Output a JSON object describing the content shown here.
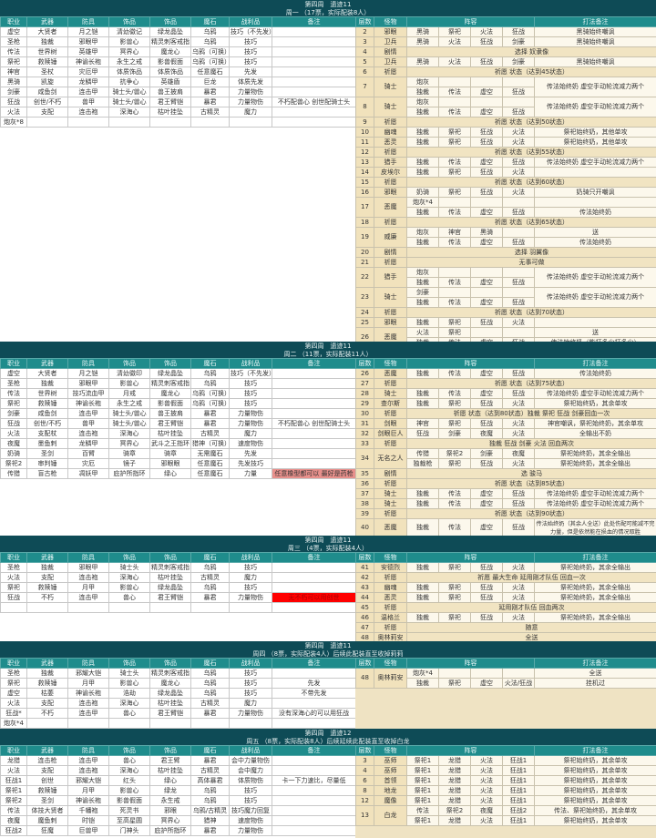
{
  "left_headers": [
    "职业",
    "武器",
    "防具",
    "饰品",
    "饰品",
    "魔石",
    "战利品",
    "备注"
  ],
  "right_headers": {
    "floor": "层数",
    "monster": "怪物",
    "lineup": "阵容",
    "note": "打法备注"
  },
  "colors": {
    "header": "#0e4b56",
    "column_header": "#1f8c8c",
    "beige": "#f1e2bc",
    "pink_note": "#e8908c",
    "red_note": "#ff0000"
  },
  "sections": [
    {
      "title": "第四周　遗迹11",
      "subtitle": "周一 （17票，实际配装8人）",
      "left_rows": [
        [
          "虚空",
          "大贤者",
          "月之铠",
          "清幼徽记",
          "绿龙晶坠",
          "乌鸦",
          "技巧（不先发）",
          ""
        ],
        [
          "圣枪",
          "独裁",
          "邪眼甲",
          "影兽心",
          "精灵刺客戒指",
          "乌鸦",
          "技巧",
          ""
        ],
        [
          "传法",
          "世界树",
          "英雄甲",
          "冥界心",
          "魔龙心",
          "乌鸦（可换）",
          "技巧",
          ""
        ],
        [
          "祭祀",
          "救赎锤",
          "神谕长袍",
          "永生之戒",
          "影兽假面",
          "乌鸦（可换）",
          "技巧",
          ""
        ],
        [
          "神官",
          "圣杖",
          "灾厄甲",
          "体质饰品",
          "体质饰品",
          "任意魔石",
          "先发",
          ""
        ],
        [
          "黑骑",
          "凯旋",
          "龙鳞甲",
          "抗争心",
          "英雄盾",
          "巨龙",
          "体质先发",
          ""
        ],
        [
          "剑豪",
          "咸鱼剑",
          "连击甲",
          "骑士头/兽心",
          "兽王披肩",
          "暴君",
          "力量物伤",
          ""
        ],
        [
          "狂战",
          "创世/不朽",
          "兽甲",
          "骑士头/兽心",
          "君王臂铠",
          "暴君",
          "力量物伤",
          "不朽配兽心 创世配骑士头"
        ],
        [
          "火法",
          "支配",
          "连击袍",
          "深海心",
          "枯叶挂坠",
          "古精灵",
          "魔力",
          ""
        ],
        [
          "炮灰*8",
          "",
          "",
          "",
          "",
          "",
          "",
          ""
        ]
      ],
      "right_rows": [
        {
          "floor": "2",
          "monster": "邪眼",
          "lineup": [
            "黑骑",
            "祭祀",
            "火法",
            "狂战"
          ],
          "note": "黑骑始终嘲讽"
        },
        {
          "floor": "3",
          "monster": "卫兵",
          "lineup": [
            "黑骑",
            "火法",
            "狂战",
            "剑豪"
          ],
          "note": "黑骑始终嘲讽"
        },
        {
          "floor": "4",
          "monster": "剧情",
          "text": "选择 奴隶像"
        },
        {
          "floor": "5",
          "monster": "卫兵",
          "lineup": [
            "黑骑",
            "火法",
            "狂战",
            "剑豪"
          ],
          "note": "黑骑始终嘲讽"
        },
        {
          "floor": "6",
          "monster": "祈愿",
          "text": "祈愿 状态（达到45状态）"
        },
        {
          "floor": "7",
          "monster": "骑士",
          "lineups": [
            [
              "炮灰",
              "",
              "",
              ""
            ],
            [
              "独裁",
              "传法",
              "虚空",
              "狂战"
            ]
          ],
          "notes": [
            "传法始终奶 虚空手动轮流减力两个"
          ]
        },
        {
          "floor": "8",
          "monster": "骑士",
          "lineups": [
            [
              "炮灰",
              "",
              "",
              ""
            ],
            [
              "独裁",
              "传法",
              "虚空",
              "狂战"
            ]
          ],
          "notes": [
            "传法始终奶 虚空手动轮流减力两个"
          ]
        },
        {
          "floor": "9",
          "monster": "祈愿",
          "text": "祈愿 状态（达到50状态）"
        },
        {
          "floor": "10",
          "monster": "幽魂",
          "lineup": [
            "独裁",
            "祭祀",
            "狂战",
            "火法"
          ],
          "note": "祭祀始终奶，其他单攻"
        },
        {
          "floor": "11",
          "monster": "恶灵",
          "lineup": [
            "独裁",
            "祭祀",
            "狂战",
            "火法"
          ],
          "note": "祭祀始终奶，其他单攻"
        },
        {
          "floor": "12",
          "monster": "祈愿",
          "text": "祈愿 状态（达到55状态）"
        },
        {
          "floor": "13",
          "monster": "猎手",
          "lineup": [
            "独裁",
            "传法",
            "虚空",
            "狂战"
          ],
          "note": "传法始终奶 虚空手动轮流减力两个"
        },
        {
          "floor": "14",
          "monster": "皮埃尔",
          "lineup": [
            "独裁",
            "祭祀",
            "狂战",
            "火法"
          ],
          "note": ""
        },
        {
          "floor": "15",
          "monster": "祈愿",
          "text": "祈愿 状态（达到60状态）"
        },
        {
          "floor": "16",
          "monster": "邪眼",
          "lineup": [
            "奶骑",
            "祭祀",
            "狂战",
            "火法"
          ],
          "note": "奶骑只开嘲讽"
        },
        {
          "floor": "17",
          "monster": "恶魔",
          "lineups": [
            [
              "炮灰*4",
              "",
              "",
              ""
            ],
            [
              "独裁",
              "传法",
              "虚空",
              "狂战"
            ]
          ],
          "notes": [
            "",
            "传法始终奶"
          ]
        },
        {
          "floor": "18",
          "monster": "祈愿",
          "text": "祈愿 状态（达到65状态）"
        },
        {
          "floor": "19",
          "monster": "威廉",
          "lineups": [
            [
              "炮灰",
              "神官",
              "黑骑",
              ""
            ],
            [
              "独裁",
              "传法",
              "虚空",
              "狂战"
            ]
          ],
          "notes": [
            "送",
            "传法始终奶"
          ]
        },
        {
          "floor": "20",
          "monster": "剧情",
          "text": "选择 羽翼像"
        },
        {
          "floor": "21",
          "monster": "祈愿",
          "text": "无事可做"
        },
        {
          "floor": "22",
          "monster": "猎手",
          "lineups": [
            [
              "炮灰",
              "",
              "",
              ""
            ],
            [
              "独裁",
              "传法",
              "虚空",
              "狂战"
            ]
          ],
          "notes": [
            "传法始终奶 虚空手动轮流减力两个"
          ]
        },
        {
          "floor": "23",
          "monster": "骑士",
          "lineups": [
            [
              "剑豪",
              "",
              "",
              ""
            ],
            [
              "独裁",
              "传法",
              "虚空",
              "狂战"
            ]
          ],
          "notes": [
            "传法始终奶 虚空手动轮流减力两个"
          ]
        },
        {
          "floor": "24",
          "monster": "祈愿",
          "text": "祈愿 状态（达到70状态）"
        },
        {
          "floor": "25",
          "monster": "邪眼",
          "lineup": [
            "独裁",
            "祭祀",
            "狂战",
            "火法"
          ],
          "note": ""
        },
        {
          "floor": "26",
          "monster": "恶魔",
          "lineups": [
            [
              "火法",
              "祭祀",
              "",
              ""
            ],
            [
              "独裁",
              "传法",
              "虚空",
              "狂战"
            ]
          ],
          "notes": [
            "送",
            "传法始终奶（能打多少打多少）"
          ]
        }
      ]
    },
    {
      "title": "第四周　遗迹11",
      "subtitle": "周二 （11票，实际配装11人）",
      "left_rows": [
        [
          "虚空",
          "大贤者",
          "月之铠",
          "清幼徽印",
          "绿龙晶坠",
          "乌鸦",
          "技巧（不先发）",
          ""
        ],
        [
          "圣枪",
          "独裁",
          "邪眼甲",
          "影兽心",
          "精灵刺客戒指",
          "乌鸦",
          "技巧",
          ""
        ],
        [
          "传法",
          "世界树",
          "技巧流血甲",
          "月戒",
          "魔龙心",
          "乌鸦（可换）",
          "技巧",
          ""
        ],
        [
          "祭祀",
          "救赎锤",
          "神谕长袍",
          "永生之戒",
          "影兽假面",
          "乌鸦（可换）",
          "技巧",
          ""
        ],
        [
          "剑豪",
          "咸鱼剑",
          "连击甲",
          "骑士头/兽心",
          "兽王披肩",
          "暴君",
          "力量物伤",
          ""
        ],
        [
          "狂战",
          "创世/不朽",
          "兽甲",
          "骑士头/兽心",
          "君王臂铠",
          "暴君",
          "力量物伤",
          "不朽配兽心 创世配骑士头"
        ],
        [
          "火法",
          "支配杖",
          "连击袍",
          "深海心",
          "枯叶挂坠",
          "古精灵",
          "魔力",
          ""
        ],
        [
          "夜魔",
          "墨鱼刺",
          "龙鳞甲",
          "冥界心",
          "武斗之王指环",
          "猎神（可换）",
          "速度物伤",
          ""
        ],
        [
          "奶骑",
          "圣剑",
          "百臂",
          "骑章",
          "骑章",
          "无需魔石",
          "先发",
          ""
        ],
        [
          "祭祀2",
          "审判锤",
          "灾厄",
          "镜子",
          "邪眼眼",
          "任意魔石",
          "先发技巧",
          ""
        ],
        [
          "传猎",
          "盲古枪",
          "凋妖甲",
          "庇护所指环",
          "绿心",
          "任意魔石",
          "力量",
          "任意橡型都可以 最好是药枪"
        ]
      ],
      "note_highlight": {
        "row": 10,
        "color": "#e8908c"
      },
      "right_rows": [
        {
          "floor": "26",
          "monster": "恶魔",
          "lineup": [
            "独裁",
            "传法",
            "虚空",
            "狂战"
          ],
          "note": "传法始终奶"
        },
        {
          "floor": "27",
          "monster": "祈愿",
          "text": "祈愿 状态（达到75状态）"
        },
        {
          "floor": "28",
          "monster": "骑士",
          "lineup": [
            "独裁",
            "传法",
            "虚空",
            "狂战"
          ],
          "note": "传法始终奶 虚空手动轮流减力两个"
        },
        {
          "floor": "29",
          "monster": "查尔斯",
          "lineup": [
            "独裁",
            "祭祀",
            "狂战",
            "火法"
          ],
          "note": "祭祀始终奶，其余单攻"
        },
        {
          "floor": "30",
          "monster": "祈愿",
          "text": "祈愿 状态（达到80状态）独裁 祭祀 狂战 剑豪回血一次"
        },
        {
          "floor": "31",
          "monster": "剑眼",
          "lineup": [
            "神官",
            "祭祀",
            "狂战",
            "火法"
          ],
          "note": "神官嘲讽，祭祀始终奶，其余单攻"
        },
        {
          "floor": "32",
          "monster": "剑眼巨人",
          "lineup": [
            "狂战",
            "剑豪",
            "夜魔",
            "火法"
          ],
          "note": "全输出不奶"
        },
        {
          "floor": "33",
          "monster": "祈愿",
          "text": "独裁 狂战 剑豪 火法 回血两次"
        },
        {
          "floor": "34",
          "monster": "无名之人",
          "lineups": [
            [
              "传猎",
              "祭祀2",
              "剑豪",
              "夜魔"
            ],
            [
              "独裁枪",
              "祭祀",
              "狂战",
              "火法"
            ]
          ],
          "notes": [
            "祭祀始终奶，其余全输出",
            "祭祀始终奶，其余全输出"
          ]
        },
        {
          "floor": "35",
          "monster": "剧情",
          "text": "选 骏马"
        },
        {
          "floor": "36",
          "monster": "祈愿",
          "text": "祈愿 状态（达到85状态）"
        },
        {
          "floor": "37",
          "monster": "骑士",
          "lineup": [
            "独裁",
            "传法",
            "虚空",
            "狂战"
          ],
          "note": "传法始终奶 虚空手动轮流减力两个"
        },
        {
          "floor": "38",
          "monster": "骑士",
          "lineup": [
            "独裁",
            "传法",
            "虚空",
            "狂战"
          ],
          "note": "传法始终奶 虚空手动轮流减力两个"
        },
        {
          "floor": "39",
          "monster": "祈愿",
          "text": "祈愿 状态（达到90状态）"
        },
        {
          "floor": "40",
          "monster": "恶魔",
          "lineup": [
            "独裁",
            "传法",
            "虚空",
            "狂战"
          ],
          "note": "传法始终奶（其余人全送）此处伤配可能减不完力量，但是依然能在损血的情况取胜",
          "tall": true
        }
      ]
    },
    {
      "title": "第四周　遗迹11",
      "subtitle": "周三 （4票，实际配装4人）",
      "left_rows": [
        [
          "圣枪",
          "独裁",
          "邪眼甲",
          "骑士头",
          "精灵刺客戒指",
          "乌鸦",
          "技巧",
          ""
        ],
        [
          "火法",
          "支配",
          "连击袍",
          "深海心",
          "枯叶挂坠",
          "古精灵",
          "魔力",
          ""
        ],
        [
          "祭祀",
          "救赎锤",
          "月甲",
          "影兽心",
          "绿龙晶坠",
          "乌鸦",
          "技巧",
          ""
        ],
        [
          "狂战",
          "不朽",
          "连击甲",
          "兽心",
          "君王臂铠",
          "暴君",
          "力量物伤",
          "无不朽可以用创世"
        ],
        [
          "",
          "",
          "",
          "",
          "",
          "",
          "",
          ""
        ]
      ],
      "note_highlight": {
        "row": 3,
        "color": "#ff0000"
      },
      "right_rows": [
        {
          "floor": "41",
          "monster": "安德烈",
          "lineup": [
            "独裁",
            "祭祀",
            "狂战",
            "火法"
          ],
          "note": "祭祀始终奶，其余全输出"
        },
        {
          "floor": "42",
          "monster": "祈愿",
          "text": "祈愿 最大生命 延用刚才队伍 回血一次"
        },
        {
          "floor": "43",
          "monster": "幽魂",
          "lineup": [
            "独裁",
            "祭祀",
            "狂战",
            "火法"
          ],
          "note": "祭祀始终奶，其余全输出"
        },
        {
          "floor": "44",
          "monster": "恶灵",
          "lineup": [
            "独裁",
            "祭祀",
            "狂战",
            "火法"
          ],
          "note": "祭祀始终奶，其余全输出"
        },
        {
          "floor": "45",
          "monster": "祈愿",
          "text": "延用刚才队伍 回血两次"
        },
        {
          "floor": "46",
          "monster": "温格兰",
          "lineup": [
            "独裁",
            "祭祀",
            "狂战",
            "火法"
          ],
          "note": "祭祀始终奶，其余全输出"
        },
        {
          "floor": "47",
          "monster": "祈愿",
          "text": "随意"
        },
        {
          "floor": "48",
          "monster": "奥林莉安",
          "text": "全送"
        }
      ]
    },
    {
      "title": "第四周　遗迹11",
      "subtitle": "周四 （8票，实际配装4人）后续此配装直至收掉莉莉",
      "left_rows": [
        [
          "圣枪",
          "独裁",
          "邪耀大铠",
          "骑士头",
          "精灵刺客戒指",
          "乌鸦",
          "技巧",
          ""
        ],
        [
          "祭祀",
          "救赎锤",
          "月甲",
          "影兽心",
          "魔龙心",
          "乌鸦",
          "技巧",
          "先发"
        ],
        [
          "虚空",
          "枯萎",
          "神谕长袍",
          "浩劫",
          "绿龙晶坠",
          "乌鸦",
          "技巧",
          "不带先发"
        ],
        [
          "火法",
          "支配",
          "连击袍",
          "深海心",
          "枯叶挂坠",
          "古精灵",
          "魔力",
          ""
        ],
        [
          "狂战*",
          "不朽",
          "连击甲",
          "兽心",
          "君王臂铠",
          "暴君",
          "力量物伤",
          "没有深海心的可以用狂战"
        ],
        [
          "炮灰*4",
          "",
          "",
          "",
          "",
          "",
          "",
          ""
        ]
      ],
      "right_rows": [
        {
          "floor": "48",
          "monster": "奥林莉安",
          "lineups": [
            [
              "炮灰*4",
              "",
              "",
              ""
            ],
            [
              "独裁",
              "祭祀",
              "虚空",
              "火法/狂战"
            ]
          ],
          "notes": [
            "全送",
            "挂机过"
          ]
        }
      ]
    },
    {
      "title": "第四周　遗迹12",
      "subtitle": "周五 （8票，实际配装8人）后续延续此配装直至收掉白龙",
      "left_rows": [
        [
          "龙猎",
          "连击枪",
          "连击甲",
          "兽心",
          "君王臂",
          "暴君",
          "会中力量物伤",
          ""
        ],
        [
          "火法",
          "支配",
          "连击袍",
          "深海心",
          "枯叶挂坠",
          "古精灵",
          "会中魔力",
          ""
        ],
        [
          "狂战1",
          "创世",
          "邪耀大铠",
          "红头",
          "绿心",
          "高体暴君",
          "体质物伤",
          "卡一下力速比，尽量低"
        ],
        [
          "祭祀1",
          "救赎锤",
          "月甲",
          "影兽心",
          "绿龙",
          "乌鸦",
          "技巧",
          ""
        ],
        [
          "祭祀2",
          "圣剑",
          "神谕长袍",
          "影兽假面",
          "永生戒",
          "乌鸦",
          "技巧",
          ""
        ],
        [
          "传法",
          "体技大贤者",
          "千幡袍",
          "死灵书",
          "邪眼",
          "乌鸦/古精灵",
          "技巧魔力回复",
          ""
        ],
        [
          "夜魔",
          "魔鱼刺",
          "时铠",
          "至高星圆",
          "冥界心",
          "猎神",
          "速度物伤",
          ""
        ],
        [
          "狂战2",
          "狂魔",
          "巨兽甲",
          "门神头",
          "庇护所指环",
          "暴君",
          "力量物伤",
          ""
        ]
      ],
      "right_rows": [
        {
          "floor": "3",
          "monster": "巫师",
          "lineup": [
            "祭祀1",
            "龙猎",
            "火法",
            "狂战1"
          ],
          "note": "祭祀始终奶，其余单攻"
        },
        {
          "floor": "4",
          "monster": "巫师",
          "lineup": [
            "祭祀1",
            "龙猎",
            "火法",
            "狂战1"
          ],
          "note": "祭祀始终奶，其余单攻"
        },
        {
          "floor": "6",
          "monster": "首领",
          "lineup": [
            "祭祀1",
            "龙猎",
            "火法",
            "狂战1"
          ],
          "note": "祭祀始终奶，其余单攻"
        },
        {
          "floor": "8",
          "monster": "地龙",
          "lineup": [
            "祭祀1",
            "龙猎",
            "火法",
            "狂战1"
          ],
          "note": "祭祀始终奶，其余单攻"
        },
        {
          "floor": "12",
          "monster": "魔像",
          "lineup": [
            "祭祀1",
            "龙猎",
            "火法",
            "狂战1"
          ],
          "note": "祭祀始终奶，其余单攻"
        },
        {
          "floor": "13",
          "monster": "白龙",
          "lineups": [
            [
              "传法",
              "祭祀2",
              "夜魔",
              "狂战2"
            ],
            [
              "祭祀1",
              "龙猎",
              "火法",
              "狂战1"
            ]
          ],
          "notes": [
            "传法、祭祀始终奶，其余单攻",
            "祭祀始终奶，其余单攻"
          ]
        }
      ]
    }
  ]
}
